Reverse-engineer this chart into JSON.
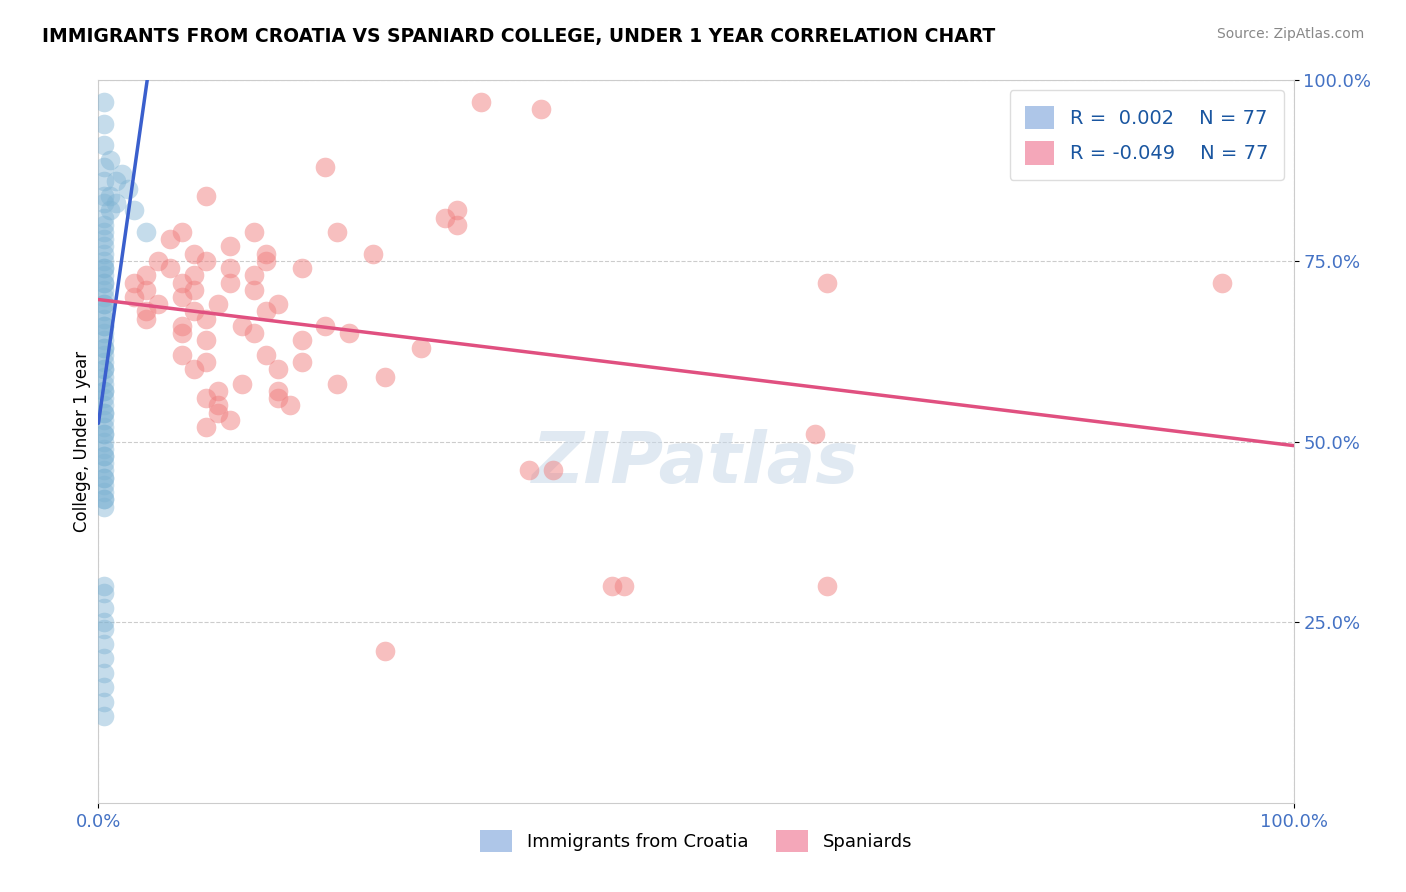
{
  "title": "IMMIGRANTS FROM CROATIA VS SPANIARD COLLEGE, UNDER 1 YEAR CORRELATION CHART",
  "source_text": "Source: ZipAtlas.com",
  "ylabel": "College, Under 1 year",
  "xlim": [
    0.0,
    1.0
  ],
  "ylim": [
    0.0,
    1.0
  ],
  "r_blue": 0.002,
  "r_pink": -0.049,
  "n": "77",
  "blue_color": "#7fb3d3",
  "pink_color": "#f08080",
  "line_blue_solid": "#3a5fcd",
  "line_blue_dashed": "#7fb3d3",
  "line_pink": "#e05080",
  "legend_r_color": "#1a56a0",
  "watermark_text": "ZIPatlas",
  "blue_scatter": [
    [
      0.005,
      0.97
    ],
    [
      0.005,
      0.94
    ],
    [
      0.005,
      0.91
    ],
    [
      0.005,
      0.88
    ],
    [
      0.005,
      0.86
    ],
    [
      0.005,
      0.84
    ],
    [
      0.005,
      0.83
    ],
    [
      0.005,
      0.81
    ],
    [
      0.005,
      0.8
    ],
    [
      0.005,
      0.79
    ],
    [
      0.005,
      0.78
    ],
    [
      0.005,
      0.77
    ],
    [
      0.005,
      0.76
    ],
    [
      0.005,
      0.75
    ],
    [
      0.005,
      0.74
    ],
    [
      0.005,
      0.73
    ],
    [
      0.005,
      0.72
    ],
    [
      0.005,
      0.71
    ],
    [
      0.005,
      0.7
    ],
    [
      0.005,
      0.69
    ],
    [
      0.005,
      0.68
    ],
    [
      0.005,
      0.67
    ],
    [
      0.005,
      0.66
    ],
    [
      0.005,
      0.65
    ],
    [
      0.005,
      0.64
    ],
    [
      0.005,
      0.63
    ],
    [
      0.005,
      0.62
    ],
    [
      0.005,
      0.61
    ],
    [
      0.005,
      0.6
    ],
    [
      0.005,
      0.59
    ],
    [
      0.005,
      0.58
    ],
    [
      0.005,
      0.57
    ],
    [
      0.005,
      0.56
    ],
    [
      0.005,
      0.55
    ],
    [
      0.005,
      0.54
    ],
    [
      0.005,
      0.53
    ],
    [
      0.005,
      0.52
    ],
    [
      0.005,
      0.51
    ],
    [
      0.005,
      0.5
    ],
    [
      0.005,
      0.49
    ],
    [
      0.005,
      0.48
    ],
    [
      0.005,
      0.47
    ],
    [
      0.005,
      0.46
    ],
    [
      0.005,
      0.45
    ],
    [
      0.005,
      0.44
    ],
    [
      0.005,
      0.43
    ],
    [
      0.005,
      0.42
    ],
    [
      0.005,
      0.41
    ],
    [
      0.01,
      0.89
    ],
    [
      0.01,
      0.84
    ],
    [
      0.01,
      0.82
    ],
    [
      0.015,
      0.86
    ],
    [
      0.015,
      0.83
    ],
    [
      0.02,
      0.87
    ],
    [
      0.025,
      0.85
    ],
    [
      0.03,
      0.82
    ],
    [
      0.005,
      0.74
    ],
    [
      0.04,
      0.79
    ],
    [
      0.005,
      0.72
    ],
    [
      0.005,
      0.69
    ],
    [
      0.005,
      0.66
    ],
    [
      0.005,
      0.63
    ],
    [
      0.005,
      0.6
    ],
    [
      0.005,
      0.57
    ],
    [
      0.005,
      0.54
    ],
    [
      0.005,
      0.51
    ],
    [
      0.005,
      0.48
    ],
    [
      0.005,
      0.45
    ],
    [
      0.005,
      0.42
    ],
    [
      0.005,
      0.3
    ],
    [
      0.005,
      0.29
    ],
    [
      0.005,
      0.27
    ],
    [
      0.005,
      0.25
    ],
    [
      0.005,
      0.24
    ],
    [
      0.005,
      0.22
    ],
    [
      0.005,
      0.2
    ],
    [
      0.005,
      0.18
    ],
    [
      0.005,
      0.16
    ],
    [
      0.005,
      0.14
    ],
    [
      0.005,
      0.12
    ]
  ],
  "pink_scatter": [
    [
      0.32,
      0.97
    ],
    [
      0.37,
      0.96
    ],
    [
      0.19,
      0.88
    ],
    [
      0.09,
      0.84
    ],
    [
      0.3,
      0.82
    ],
    [
      0.29,
      0.81
    ],
    [
      0.3,
      0.8
    ],
    [
      0.07,
      0.79
    ],
    [
      0.13,
      0.79
    ],
    [
      0.2,
      0.79
    ],
    [
      0.06,
      0.78
    ],
    [
      0.11,
      0.77
    ],
    [
      0.08,
      0.76
    ],
    [
      0.14,
      0.76
    ],
    [
      0.23,
      0.76
    ],
    [
      0.05,
      0.75
    ],
    [
      0.09,
      0.75
    ],
    [
      0.14,
      0.75
    ],
    [
      0.06,
      0.74
    ],
    [
      0.11,
      0.74
    ],
    [
      0.17,
      0.74
    ],
    [
      0.04,
      0.73
    ],
    [
      0.08,
      0.73
    ],
    [
      0.13,
      0.73
    ],
    [
      0.03,
      0.72
    ],
    [
      0.07,
      0.72
    ],
    [
      0.11,
      0.72
    ],
    [
      0.04,
      0.71
    ],
    [
      0.08,
      0.71
    ],
    [
      0.13,
      0.71
    ],
    [
      0.03,
      0.7
    ],
    [
      0.07,
      0.7
    ],
    [
      0.05,
      0.69
    ],
    [
      0.1,
      0.69
    ],
    [
      0.15,
      0.69
    ],
    [
      0.04,
      0.68
    ],
    [
      0.08,
      0.68
    ],
    [
      0.14,
      0.68
    ],
    [
      0.04,
      0.67
    ],
    [
      0.09,
      0.67
    ],
    [
      0.07,
      0.66
    ],
    [
      0.12,
      0.66
    ],
    [
      0.19,
      0.66
    ],
    [
      0.07,
      0.65
    ],
    [
      0.13,
      0.65
    ],
    [
      0.21,
      0.65
    ],
    [
      0.09,
      0.64
    ],
    [
      0.17,
      0.64
    ],
    [
      0.27,
      0.63
    ],
    [
      0.07,
      0.62
    ],
    [
      0.14,
      0.62
    ],
    [
      0.09,
      0.61
    ],
    [
      0.17,
      0.61
    ],
    [
      0.08,
      0.6
    ],
    [
      0.15,
      0.6
    ],
    [
      0.24,
      0.59
    ],
    [
      0.12,
      0.58
    ],
    [
      0.2,
      0.58
    ],
    [
      0.1,
      0.57
    ],
    [
      0.15,
      0.57
    ],
    [
      0.09,
      0.56
    ],
    [
      0.15,
      0.56
    ],
    [
      0.1,
      0.55
    ],
    [
      0.16,
      0.55
    ],
    [
      0.1,
      0.54
    ],
    [
      0.11,
      0.53
    ],
    [
      0.09,
      0.52
    ],
    [
      0.36,
      0.46
    ],
    [
      0.38,
      0.46
    ],
    [
      0.24,
      0.21
    ],
    [
      0.43,
      0.3
    ],
    [
      0.44,
      0.3
    ],
    [
      0.61,
      0.3
    ],
    [
      0.6,
      0.51
    ],
    [
      0.94,
      0.72
    ],
    [
      0.61,
      0.72
    ]
  ]
}
